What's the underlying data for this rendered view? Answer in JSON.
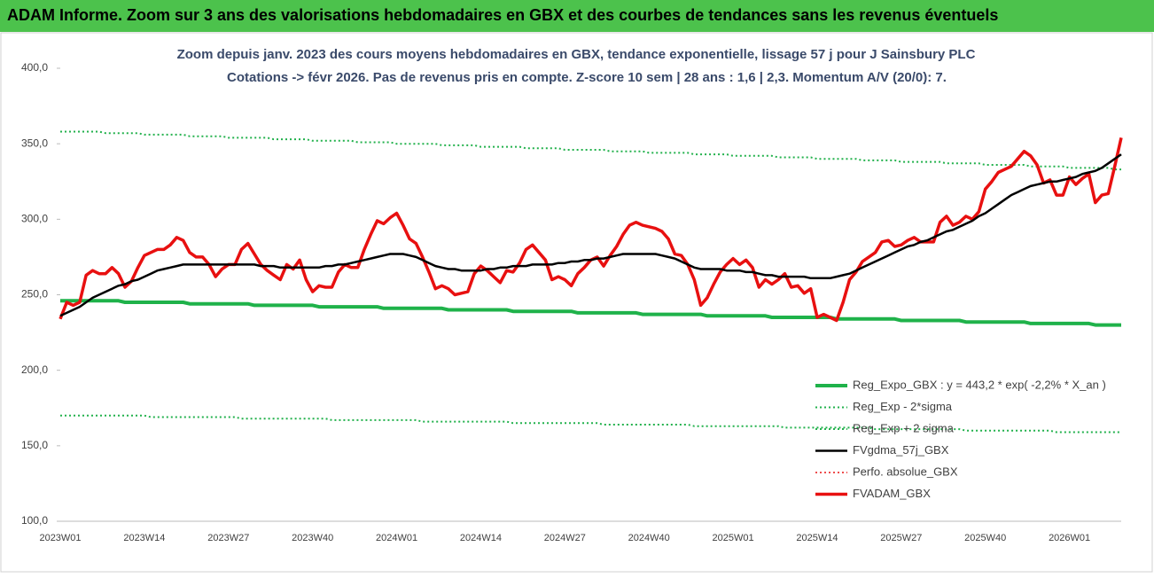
{
  "chart_data": {
    "type": "line",
    "title": "ADAM Informe. Zoom sur 3 ans des valorisations hebdomadaires en GBX et des courbes de tendances sans les revenus éventuels",
    "subtitle": "Zoom depuis janv. 2023 des cours moyens hebdomadaires en GBX, tendance exponentielle, lissage 57 j pour J Sainsbury PLC",
    "subtitle2": "Cotations -> févr 2026.  Pas de revenus pris en compte. Z-score 10 sem | 28 ans : 1,6 | 2,3. Momentum A/V (20/0): 7.",
    "categories": [
      "2023W01",
      null,
      null,
      null,
      null,
      null,
      null,
      null,
      null,
      null,
      null,
      null,
      null,
      "2023W14",
      null,
      null,
      null,
      null,
      null,
      null,
      null,
      null,
      null,
      null,
      null,
      null,
      "2023W27",
      null,
      null,
      null,
      null,
      null,
      null,
      null,
      null,
      null,
      null,
      null,
      null,
      "2023W40",
      null,
      null,
      null,
      null,
      null,
      null,
      null,
      null,
      null,
      null,
      null,
      null,
      "2024W01",
      null,
      null,
      null,
      null,
      null,
      null,
      null,
      null,
      null,
      null,
      null,
      null,
      "2024W14",
      null,
      null,
      null,
      null,
      null,
      null,
      null,
      null,
      null,
      null,
      null,
      null,
      "2024W27",
      null,
      null,
      null,
      null,
      null,
      null,
      null,
      null,
      null,
      null,
      null,
      null,
      "2024W40",
      null,
      null,
      null,
      null,
      null,
      null,
      null,
      null,
      null,
      null,
      null,
      null,
      "2025W01",
      null,
      null,
      null,
      null,
      null,
      null,
      null,
      null,
      null,
      null,
      null,
      null,
      "2025W14",
      null,
      null,
      null,
      null,
      null,
      null,
      null,
      null,
      null,
      null,
      null,
      null,
      "2025W27",
      null,
      null,
      null,
      null,
      null,
      null,
      null,
      null,
      null,
      null,
      null,
      null,
      "2025W40",
      null,
      null,
      null,
      null,
      null,
      null,
      null,
      null,
      null,
      null,
      null,
      null,
      "2026W01",
      null,
      null,
      null,
      null,
      null,
      null,
      null,
      null
    ],
    "ylim": [
      100,
      400
    ],
    "yticks": [
      {
        "value": 100,
        "label": "100,0"
      },
      {
        "value": 150,
        "label": "150,0"
      },
      {
        "value": 200,
        "label": "200,0"
      },
      {
        "value": 250,
        "label": "250,0"
      },
      {
        "value": 300,
        "label": "300,0"
      },
      {
        "value": 350,
        "label": "350,0"
      },
      {
        "value": 400,
        "label": "400,0"
      }
    ],
    "grid": false,
    "legend": "lower right",
    "series": [
      {
        "name": "Reg_Expo_GBX : y = 443,2 * exp( -2,2% *  X_an )",
        "color": "#1fb24a",
        "style": "solid",
        "width": 4,
        "values": [
          246,
          246,
          246,
          246,
          246,
          246,
          246,
          246,
          246,
          246,
          245,
          245,
          245,
          245,
          245,
          245,
          245,
          245,
          245,
          245,
          244,
          244,
          244,
          244,
          244,
          244,
          244,
          244,
          244,
          244,
          243,
          243,
          243,
          243,
          243,
          243,
          243,
          243,
          243,
          243,
          242,
          242,
          242,
          242,
          242,
          242,
          242,
          242,
          242,
          242,
          241,
          241,
          241,
          241,
          241,
          241,
          241,
          241,
          241,
          241,
          240,
          240,
          240,
          240,
          240,
          240,
          240,
          240,
          240,
          240,
          239,
          239,
          239,
          239,
          239,
          239,
          239,
          239,
          239,
          239,
          238,
          238,
          238,
          238,
          238,
          238,
          238,
          238,
          238,
          238,
          237,
          237,
          237,
          237,
          237,
          237,
          237,
          237,
          237,
          237,
          236,
          236,
          236,
          236,
          236,
          236,
          236,
          236,
          236,
          236,
          235,
          235,
          235,
          235,
          235,
          235,
          235,
          235,
          235,
          235,
          234,
          234,
          234,
          234,
          234,
          234,
          234,
          234,
          234,
          234,
          233,
          233,
          233,
          233,
          233,
          233,
          233,
          233,
          233,
          233,
          232,
          232,
          232,
          232,
          232,
          232,
          232,
          232,
          232,
          232,
          231,
          231,
          231,
          231,
          231,
          231,
          231,
          231,
          231,
          231,
          230,
          230,
          230,
          230,
          230
        ]
      },
      {
        "name": "Reg_Exp - 2*sigma",
        "color": "#22b14c",
        "style": "dotted",
        "width": 2,
        "values": [
          170,
          170,
          170,
          170,
          170,
          170,
          170,
          170,
          170,
          170,
          170,
          170,
          170,
          170,
          169,
          169,
          169,
          169,
          169,
          169,
          169,
          169,
          169,
          169,
          169,
          169,
          169,
          169,
          168,
          168,
          168,
          168,
          168,
          168,
          168,
          168,
          168,
          168,
          168,
          168,
          168,
          168,
          167,
          167,
          167,
          167,
          167,
          167,
          167,
          167,
          167,
          167,
          167,
          167,
          167,
          167,
          166,
          166,
          166,
          166,
          166,
          166,
          166,
          166,
          166,
          166,
          166,
          166,
          166,
          166,
          165,
          165,
          165,
          165,
          165,
          165,
          165,
          165,
          165,
          165,
          165,
          165,
          165,
          165,
          164,
          164,
          164,
          164,
          164,
          164,
          164,
          164,
          164,
          164,
          164,
          164,
          164,
          164,
          163,
          163,
          163,
          163,
          163,
          163,
          163,
          163,
          163,
          163,
          163,
          163,
          163,
          163,
          162,
          162,
          162,
          162,
          162,
          162,
          162,
          162,
          162,
          162,
          162,
          162,
          162,
          162,
          161,
          161,
          161,
          161,
          161,
          161,
          161,
          161,
          161,
          161,
          161,
          161,
          161,
          161,
          160,
          160,
          160,
          160,
          160,
          160,
          160,
          160,
          160,
          160,
          160,
          160,
          160,
          160,
          159,
          159,
          159,
          159,
          159,
          159,
          159,
          159,
          159,
          159,
          159
        ]
      },
      {
        "name": "Reg_Exp + 2 sigma",
        "color": "#22b14c",
        "style": "dotted",
        "width": 2,
        "values": [
          358,
          358,
          358,
          358,
          358,
          358,
          358,
          357,
          357,
          357,
          357,
          357,
          357,
          356,
          356,
          356,
          356,
          356,
          356,
          356,
          355,
          355,
          355,
          355,
          355,
          355,
          354,
          354,
          354,
          354,
          354,
          354,
          354,
          353,
          353,
          353,
          353,
          353,
          353,
          352,
          352,
          352,
          352,
          352,
          352,
          352,
          351,
          351,
          351,
          351,
          351,
          351,
          350,
          350,
          350,
          350,
          350,
          350,
          350,
          349,
          349,
          349,
          349,
          349,
          349,
          348,
          348,
          348,
          348,
          348,
          348,
          348,
          347,
          347,
          347,
          347,
          347,
          347,
          346,
          346,
          346,
          346,
          346,
          346,
          346,
          345,
          345,
          345,
          345,
          345,
          345,
          344,
          344,
          344,
          344,
          344,
          344,
          344,
          343,
          343,
          343,
          343,
          343,
          343,
          342,
          342,
          342,
          342,
          342,
          342,
          342,
          341,
          341,
          341,
          341,
          341,
          341,
          340,
          340,
          340,
          340,
          340,
          340,
          340,
          339,
          339,
          339,
          339,
          339,
          339,
          338,
          338,
          338,
          338,
          338,
          338,
          338,
          337,
          337,
          337,
          337,
          337,
          337,
          336,
          336,
          336,
          336,
          336,
          336,
          336,
          335,
          335,
          335,
          335,
          335,
          335,
          334,
          334,
          334,
          334,
          334,
          334,
          334,
          333,
          333
        ]
      },
      {
        "name": "FVgdma_57j_GBX",
        "color": "#000000",
        "style": "solid",
        "width": 2.5,
        "values": [
          236,
          238,
          240,
          242,
          245,
          248,
          250,
          252,
          254,
          256,
          257,
          259,
          260,
          262,
          264,
          266,
          267,
          268,
          269,
          270,
          270,
          270,
          270,
          270,
          270,
          270,
          270,
          270,
          270,
          270,
          270,
          269,
          269,
          269,
          268,
          268,
          268,
          268,
          268,
          268,
          268,
          269,
          269,
          270,
          270,
          271,
          272,
          273,
          274,
          275,
          276,
          277,
          277,
          277,
          276,
          275,
          273,
          271,
          269,
          268,
          267,
          267,
          266,
          266,
          266,
          266,
          267,
          267,
          268,
          268,
          269,
          269,
          269,
          270,
          270,
          270,
          270,
          271,
          271,
          272,
          272,
          273,
          273,
          274,
          274,
          275,
          276,
          277,
          277,
          277,
          277,
          277,
          277,
          276,
          275,
          274,
          272,
          270,
          268,
          267,
          267,
          267,
          267,
          266,
          266,
          266,
          265,
          265,
          264,
          263,
          263,
          262,
          262,
          262,
          262,
          262,
          261,
          261,
          261,
          261,
          262,
          263,
          264,
          266,
          268,
          270,
          272,
          274,
          276,
          278,
          280,
          282,
          283,
          285,
          286,
          288,
          290,
          292,
          293,
          295,
          297,
          299,
          302,
          304,
          307,
          310,
          313,
          316,
          318,
          320,
          322,
          323,
          324,
          325,
          325,
          326,
          327,
          328,
          330,
          331,
          332,
          334,
          337,
          340,
          343
        ]
      },
      {
        "name": "Perfo. absolue_GBX",
        "color": "#e81010",
        "style": "dotted",
        "width": 1.5,
        "values": [
          234,
          245,
          243,
          245,
          263,
          266,
          264,
          264,
          268,
          264,
          255,
          259,
          268,
          276,
          278,
          280,
          280,
          283,
          288,
          286,
          278,
          275,
          275,
          270,
          262,
          267,
          270,
          270,
          280,
          284,
          277,
          270,
          266,
          263,
          260,
          270,
          267,
          273,
          260,
          252,
          256,
          255,
          255,
          265,
          270,
          268,
          268,
          280,
          290,
          299,
          297,
          301,
          304,
          296,
          287,
          284,
          275,
          265,
          254,
          256,
          254,
          250,
          251,
          252,
          264,
          269,
          266,
          262,
          258,
          266,
          265,
          271,
          280,
          283,
          278,
          273,
          260,
          262,
          260,
          256,
          264,
          268,
          273,
          275,
          269,
          276,
          282,
          290,
          296,
          298,
          296,
          295,
          294,
          292,
          287,
          277,
          276,
          270,
          260,
          243,
          248,
          257,
          265,
          270,
          274,
          270,
          273,
          268,
          255,
          260,
          257,
          260,
          264,
          255,
          256,
          251,
          254,
          235,
          237,
          235,
          233,
          245,
          260,
          265,
          272,
          275,
          278,
          285,
          286,
          282,
          283,
          286,
          288,
          285,
          285,
          285,
          298,
          302,
          296,
          298,
          302,
          300,
          305,
          320,
          325,
          331,
          333,
          335,
          340,
          345,
          342,
          336,
          324,
          326,
          316,
          316,
          328,
          323,
          327,
          330,
          311,
          316,
          317,
          335,
          354
        ]
      },
      {
        "name": "FVADAM_GBX",
        "color": "#e81010",
        "style": "solid",
        "width": 3.5,
        "values": [
          234,
          245,
          243,
          245,
          263,
          266,
          264,
          264,
          268,
          264,
          255,
          259,
          268,
          276,
          278,
          280,
          280,
          283,
          288,
          286,
          278,
          275,
          275,
          270,
          262,
          267,
          270,
          270,
          280,
          284,
          277,
          270,
          266,
          263,
          260,
          270,
          267,
          273,
          260,
          252,
          256,
          255,
          255,
          265,
          270,
          268,
          268,
          280,
          290,
          299,
          297,
          301,
          304,
          296,
          287,
          284,
          275,
          265,
          254,
          256,
          254,
          250,
          251,
          252,
          264,
          269,
          266,
          262,
          258,
          266,
          265,
          271,
          280,
          283,
          278,
          273,
          260,
          262,
          260,
          256,
          264,
          268,
          273,
          275,
          269,
          276,
          282,
          290,
          296,
          298,
          296,
          295,
          294,
          292,
          287,
          277,
          276,
          270,
          260,
          243,
          248,
          257,
          265,
          270,
          274,
          270,
          273,
          268,
          255,
          260,
          257,
          260,
          264,
          255,
          256,
          251,
          254,
          235,
          237,
          235,
          233,
          245,
          260,
          265,
          272,
          275,
          278,
          285,
          286,
          282,
          283,
          286,
          288,
          285,
          285,
          285,
          298,
          302,
          296,
          298,
          302,
          300,
          305,
          320,
          325,
          331,
          333,
          335,
          340,
          345,
          342,
          336,
          324,
          326,
          316,
          316,
          328,
          323,
          327,
          330,
          311,
          316,
          317,
          335,
          354
        ]
      }
    ],
    "draw_order": [
      1,
      2,
      0,
      4,
      5,
      3
    ]
  }
}
